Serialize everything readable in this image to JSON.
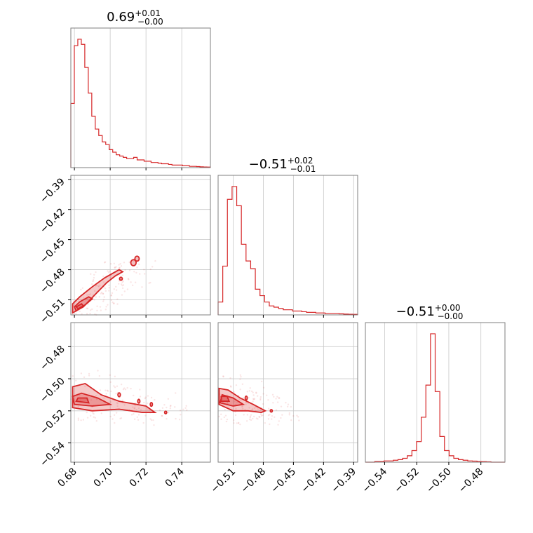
{
  "chart_data": {
    "type": "corner",
    "color": "#d62728",
    "params": [
      {
        "title_value": "0.69",
        "title_plus": "+0.01",
        "title_minus": "−0.00",
        "range": [
          0.678,
          0.756
        ],
        "ticks": [
          0.68,
          0.7,
          0.72,
          0.74
        ],
        "tick_labels": [
          "0.68",
          "0.70",
          "0.72",
          "0.74"
        ],
        "hist": [
          0.5,
          0.95,
          1.0,
          0.96,
          0.78,
          0.58,
          0.4,
          0.3,
          0.25,
          0.2,
          0.18,
          0.14,
          0.12,
          0.1,
          0.09,
          0.08,
          0.07,
          0.07,
          0.08,
          0.06,
          0.06,
          0.05,
          0.05,
          0.04,
          0.04,
          0.035,
          0.03,
          0.03,
          0.025,
          0.02,
          0.02,
          0.02,
          0.015,
          0.015,
          0.01,
          0.01,
          0.008,
          0.006,
          0.005,
          0.004
        ]
      },
      {
        "title_value": "−0.51",
        "title_plus": "+0.02",
        "title_minus": "−0.01",
        "range": [
          -0.525,
          -0.386
        ],
        "ticks": [
          -0.51,
          -0.48,
          -0.45,
          -0.42,
          -0.39
        ],
        "tick_labels": [
          "−0.51",
          "−0.48",
          "−0.45",
          "−0.42",
          "−0.39"
        ],
        "hist": [
          0.1,
          0.38,
          0.9,
          1.0,
          0.85,
          0.55,
          0.42,
          0.36,
          0.2,
          0.15,
          0.1,
          0.07,
          0.06,
          0.05,
          0.04,
          0.04,
          0.03,
          0.03,
          0.025,
          0.02,
          0.02,
          0.015,
          0.015,
          0.01,
          0.01,
          0.01,
          0.008,
          0.006,
          0.005,
          0.004
        ]
      },
      {
        "title_value": "−0.51",
        "title_plus": "+0.00",
        "title_minus": "−0.00",
        "range": [
          -0.552,
          -0.465
        ],
        "ticks": [
          -0.54,
          -0.52,
          -0.5,
          -0.48
        ],
        "tick_labels": [
          "−0.54",
          "−0.52",
          "−0.50",
          "−0.48"
        ],
        "hist": [
          0,
          0,
          0.005,
          0.005,
          0.01,
          0.01,
          0.015,
          0.02,
          0.03,
          0.05,
          0.09,
          0.16,
          0.35,
          0.6,
          1.0,
          0.55,
          0.2,
          0.09,
          0.05,
          0.03,
          0.02,
          0.015,
          0.01,
          0.008,
          0.005,
          0.004,
          0.003,
          0,
          0,
          0
        ]
      }
    ],
    "y_ticks": {
      "row1": {
        "ticks": [
          -0.39,
          -0.42,
          -0.45,
          -0.48,
          -0.51
        ],
        "tick_labels": [
          "−0.39",
          "−0.42",
          "−0.45",
          "−0.48",
          "−0.51"
        ]
      },
      "row2": {
        "ticks": [
          -0.48,
          -0.5,
          -0.52,
          -0.54
        ],
        "tick_labels": [
          "−0.48",
          "−0.50",
          "−0.52",
          "−0.54"
        ]
      }
    },
    "contours": {
      "p0_p1": {
        "outer": [
          [
            0.679,
            -0.523
          ],
          [
            0.685,
            -0.517
          ],
          [
            0.692,
            -0.504
          ],
          [
            0.698,
            -0.493
          ],
          [
            0.703,
            -0.486
          ],
          [
            0.707,
            -0.482
          ],
          [
            0.705,
            -0.48
          ],
          [
            0.697,
            -0.488
          ],
          [
            0.69,
            -0.497
          ],
          [
            0.683,
            -0.507
          ],
          [
            0.679,
            -0.514
          ]
        ],
        "mid": [
          [
            0.681,
            -0.521
          ],
          [
            0.686,
            -0.515
          ],
          [
            0.69,
            -0.509
          ],
          [
            0.688,
            -0.507
          ],
          [
            0.683,
            -0.512
          ],
          [
            0.68,
            -0.517
          ]
        ],
        "inner": [
          [
            0.682,
            -0.519
          ],
          [
            0.685,
            -0.516
          ],
          [
            0.684,
            -0.514
          ],
          [
            0.681,
            -0.517
          ]
        ],
        "blobs": [
          [
            0.713,
            -0.473,
            0.0015,
            0.003
          ],
          [
            0.715,
            -0.469,
            0.0012,
            0.0025
          ],
          [
            0.706,
            -0.489,
            0.0008,
            0.0015
          ]
        ]
      },
      "p0_p2": {
        "outer": [
          [
            0.679,
            -0.518
          ],
          [
            0.69,
            -0.52
          ],
          [
            0.705,
            -0.519
          ],
          [
            0.718,
            -0.521
          ],
          [
            0.725,
            -0.521
          ],
          [
            0.72,
            -0.517
          ],
          [
            0.705,
            -0.514
          ],
          [
            0.695,
            -0.51
          ],
          [
            0.686,
            -0.503
          ],
          [
            0.679,
            -0.505
          ]
        ],
        "mid": [
          [
            0.68,
            -0.516
          ],
          [
            0.69,
            -0.517
          ],
          [
            0.7,
            -0.516
          ],
          [
            0.693,
            -0.512
          ],
          [
            0.684,
            -0.509
          ],
          [
            0.679,
            -0.511
          ]
        ],
        "inner": [
          [
            0.681,
            -0.514
          ],
          [
            0.688,
            -0.515
          ],
          [
            0.687,
            -0.512
          ],
          [
            0.682,
            -0.512
          ]
        ],
        "blobs": [
          [
            0.705,
            -0.51,
            0.0007,
            0.0012
          ],
          [
            0.716,
            -0.514,
            0.0006,
            0.0012
          ],
          [
            0.723,
            -0.516,
            0.0006,
            0.0012
          ],
          [
            0.731,
            -0.521,
            0.0006,
            0.0008
          ]
        ]
      },
      "p1_p2": {
        "outer": [
          [
            -0.524,
            -0.516
          ],
          [
            -0.51,
            -0.52
          ],
          [
            -0.495,
            -0.52
          ],
          [
            -0.482,
            -0.521
          ],
          [
            -0.478,
            -0.52
          ],
          [
            -0.49,
            -0.516
          ],
          [
            -0.503,
            -0.512
          ],
          [
            -0.515,
            -0.507
          ],
          [
            -0.524,
            -0.506
          ]
        ],
        "mid": [
          [
            -0.523,
            -0.515
          ],
          [
            -0.51,
            -0.517
          ],
          [
            -0.5,
            -0.516
          ],
          [
            -0.51,
            -0.512
          ],
          [
            -0.521,
            -0.51
          ]
        ],
        "inner": [
          [
            -0.522,
            -0.514
          ],
          [
            -0.514,
            -0.514
          ],
          [
            -0.516,
            -0.511
          ],
          [
            -0.522,
            -0.511
          ]
        ],
        "blobs": [
          [
            -0.497,
            -0.512,
            0.0009,
            0.0012
          ],
          [
            -0.472,
            -0.52,
            0.0009,
            0.0008
          ]
        ]
      }
    }
  }
}
